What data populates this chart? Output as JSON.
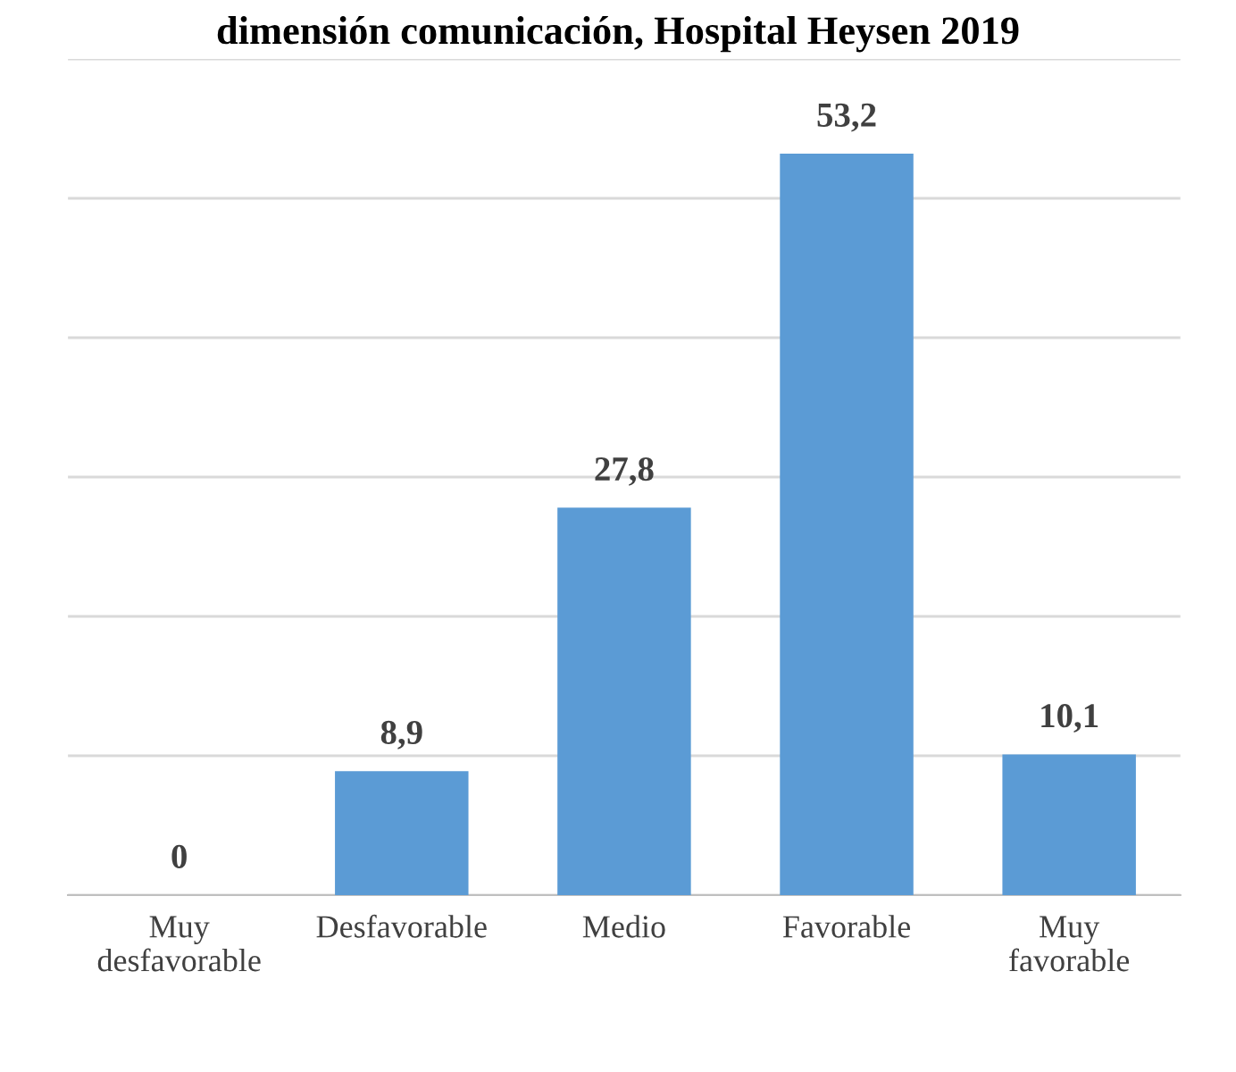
{
  "chart_data": {
    "type": "bar",
    "title": "dimensión comunicación, Hospital Heysen 2019",
    "categories": [
      "Muy\ndesfavorable",
      "Desfavorable",
      "Medio",
      "Favorable",
      "Muy\nfavorable"
    ],
    "values": [
      0,
      8.9,
      27.8,
      53.2,
      10.1
    ],
    "color": "#5b9bd5",
    "ylim": [
      0,
      60
    ],
    "yticks": [
      {
        "value": 0,
        "label": null
      },
      {
        "value": 10,
        "label": null
      },
      {
        "value": 20,
        "label": null
      },
      {
        "value": 30,
        "label": null
      },
      {
        "value": 40,
        "label": null
      },
      {
        "value": 50,
        "label": null
      },
      {
        "value": 60,
        "label": null
      }
    ],
    "tick_labels": "x",
    "grid": "y",
    "legend": false,
    "value_labels": [
      "0",
      "8,9",
      "27,8",
      "53,2",
      "10,1"
    ]
  }
}
